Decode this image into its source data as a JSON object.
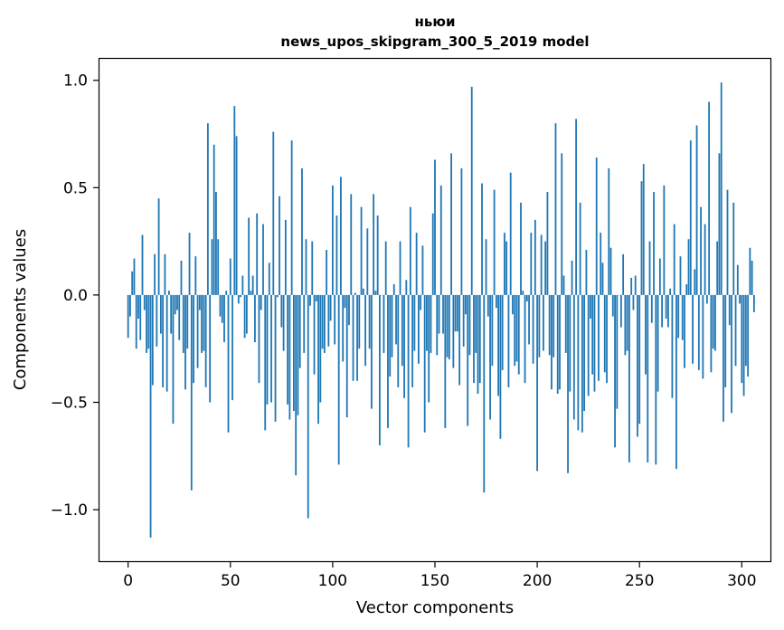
{
  "chart_data": {
    "type": "bar",
    "title_line1": "ньюи",
    "title_line2": "news_upos_skipgram_300_5_2019 model",
    "xlabel": "Vector components",
    "ylabel": "Components values",
    "xlim": [
      -14,
      314
    ],
    "ylim": [
      -1.24,
      1.1
    ],
    "xticks": [
      0,
      50,
      100,
      150,
      200,
      250,
      300
    ],
    "xtick_labels": [
      "0",
      "50",
      "100",
      "150",
      "200",
      "250",
      "300"
    ],
    "yticks": [
      -1.0,
      -0.5,
      0.0,
      0.5,
      1.0
    ],
    "ytick_labels": [
      "−1.0",
      "−0.5",
      "0.0",
      "0.5",
      "1.0"
    ],
    "bar_color": "#1f77b4",
    "values": [
      -0.2,
      -0.1,
      0.11,
      0.17,
      -0.25,
      -0.11,
      -0.21,
      0.28,
      -0.07,
      -0.27,
      -0.25,
      -1.13,
      -0.42,
      0.19,
      -0.24,
      0.45,
      -0.18,
      -0.43,
      0.19,
      -0.45,
      0.02,
      -0.18,
      -0.6,
      -0.09,
      -0.07,
      -0.21,
      0.16,
      -0.27,
      -0.44,
      -0.25,
      0.29,
      -0.91,
      -0.41,
      0.18,
      -0.34,
      -0.07,
      -0.27,
      -0.26,
      -0.43,
      0.8,
      -0.5,
      0.26,
      0.7,
      0.48,
      0.26,
      -0.1,
      -0.13,
      -0.22,
      0.02,
      -0.64,
      0.17,
      -0.49,
      0.88,
      0.74,
      -0.04,
      -0.01,
      0.09,
      -0.2,
      -0.18,
      0.36,
      0.02,
      0.09,
      -0.22,
      0.38,
      -0.41,
      -0.07,
      0.33,
      -0.63,
      -0.51,
      0.15,
      -0.5,
      0.76,
      -0.59,
      -0.01,
      0.46,
      -0.15,
      -0.26,
      0.35,
      -0.51,
      -0.58,
      0.72,
      -0.54,
      -0.84,
      -0.56,
      -0.34,
      0.59,
      -0.27,
      0.26,
      -1.04,
      -0.05,
      0.25,
      -0.37,
      -0.03,
      -0.6,
      -0.5,
      -0.25,
      -0.27,
      0.21,
      -0.24,
      -0.12,
      0.51,
      -0.23,
      0.37,
      -0.79,
      0.55,
      -0.31,
      -0.06,
      -0.57,
      -0.14,
      0.47,
      -0.4,
      0.01,
      -0.4,
      -0.25,
      0.41,
      0.03,
      -0.33,
      0.31,
      -0.25,
      -0.53,
      0.47,
      0.02,
      0.37,
      -0.7,
      0.0,
      -0.27,
      0.25,
      -0.62,
      -0.38,
      -0.29,
      0.05,
      -0.23,
      -0.43,
      0.25,
      -0.33,
      -0.48,
      0.07,
      -0.71,
      0.41,
      -0.43,
      -0.26,
      0.29,
      -0.32,
      -0.07,
      0.23,
      -0.64,
      -0.26,
      -0.5,
      -0.27,
      0.38,
      0.63,
      -0.28,
      -0.18,
      0.51,
      -0.18,
      -0.62,
      -0.29,
      -0.3,
      0.66,
      -0.34,
      -0.17,
      -0.17,
      -0.42,
      0.59,
      -0.24,
      -0.09,
      -0.61,
      -0.28,
      0.97,
      -0.41,
      -0.27,
      -0.46,
      -0.41,
      0.52,
      -0.92,
      0.26,
      -0.1,
      -0.58,
      -0.33,
      0.49,
      -0.06,
      -0.47,
      -0.67,
      -0.35,
      0.29,
      0.25,
      -0.43,
      0.57,
      -0.09,
      -0.33,
      -0.31,
      -0.37,
      0.43,
      0.02,
      -0.41,
      -0.03,
      -0.23,
      0.29,
      -0.32,
      0.35,
      -0.82,
      -0.29,
      0.28,
      -0.26,
      0.25,
      0.48,
      -0.28,
      -0.44,
      -0.29,
      0.8,
      -0.46,
      -0.44,
      0.66,
      0.09,
      -0.27,
      -0.83,
      -0.45,
      0.16,
      -0.58,
      0.82,
      -0.63,
      0.43,
      -0.64,
      -0.54,
      0.21,
      -0.47,
      -0.11,
      -0.37,
      -0.45,
      0.64,
      -0.4,
      0.29,
      0.15,
      -0.36,
      -0.41,
      0.59,
      0.22,
      -0.1,
      -0.71,
      -0.53,
      0.0,
      -0.15,
      0.19,
      -0.28,
      -0.26,
      -0.78,
      0.08,
      -0.07,
      0.09,
      -0.66,
      -0.6,
      0.53,
      0.61,
      -0.37,
      -0.78,
      0.25,
      -0.13,
      0.48,
      -0.79,
      -0.45,
      0.17,
      -0.15,
      0.51,
      -0.11,
      -0.15,
      0.03,
      -0.48,
      0.33,
      -0.81,
      -0.2,
      0.18,
      -0.21,
      -0.34,
      0.05,
      0.26,
      0.72,
      -0.32,
      0.12,
      0.79,
      -0.35,
      0.41,
      -0.39,
      0.33,
      -0.04,
      0.9,
      -0.36,
      -0.25,
      -0.26,
      0.25,
      0.66,
      0.99,
      -0.59,
      -0.43,
      0.49,
      -0.14,
      -0.55,
      0.43,
      -0.33,
      0.14,
      -0.04,
      -0.41,
      -0.47,
      -0.33,
      -0.38,
      0.22,
      0.16,
      -0.08
    ]
  }
}
